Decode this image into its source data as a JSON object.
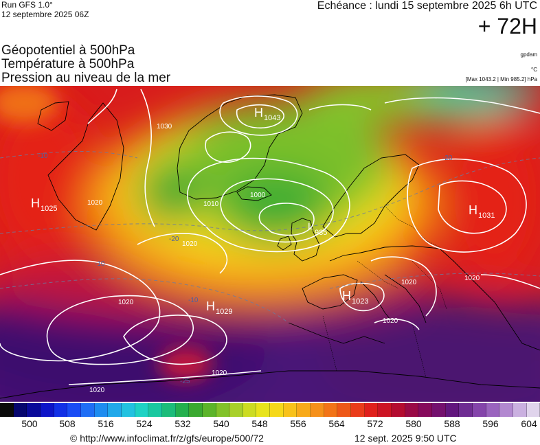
{
  "header": {
    "run": "Run GFS 1.0°",
    "run_date": "12 septembre 2025 06Z",
    "echeance": "Echéance : lundi 15 septembre 2025 6h UTC",
    "lead_time": "+ 72H"
  },
  "legend": {
    "line1": "Géopotentiel à 500hPa",
    "line2": "Température à 500hPa",
    "line3": "Pression au niveau de la mer",
    "unit1": "gpdam",
    "unit2": "°C",
    "unit3": "[Max 1043.2 | Min 985.2] hPa"
  },
  "map": {
    "highs": [
      {
        "label": "H",
        "value": "1043"
      },
      {
        "label": "H",
        "value": "1025"
      },
      {
        "label": "H",
        "value": "1031"
      },
      {
        "label": "H",
        "value": "1029"
      },
      {
        "label": "H",
        "value": "1023"
      }
    ],
    "lows": [
      {
        "label": "L",
        "value": "985"
      }
    ],
    "isobar_labels": [
      "1020",
      "1020",
      "1020",
      "1020",
      "1020",
      "1020",
      "1020",
      "1020",
      "1000",
      "1010",
      "1030"
    ],
    "temp_labels": [
      "-20",
      "-20",
      "-10",
      "-10",
      "-10",
      "-25"
    ],
    "colors": {
      "land_outline": "#000000",
      "isobar": "#ffffff"
    }
  },
  "scale": {
    "colors": [
      "#0a0a0a",
      "#06066e",
      "#0a0a9a",
      "#0d14c8",
      "#1230e6",
      "#1a4cf5",
      "#1f6ef5",
      "#1e8cf0",
      "#20a8ea",
      "#22c2e0",
      "#1ed2c4",
      "#1ac8a0",
      "#1cbc7a",
      "#24b04e",
      "#3aa830",
      "#5cb42a",
      "#82c22a",
      "#a8d02a",
      "#ccdc22",
      "#e8e41c",
      "#f5d81a",
      "#f8c21a",
      "#f8aa1a",
      "#f5901a",
      "#f27418",
      "#ee5818",
      "#ea3c1a",
      "#e0201c",
      "#cc1424",
      "#b40c30",
      "#9a0a46",
      "#860a5c",
      "#74106e",
      "#62167e",
      "#6e2c92",
      "#8444aa",
      "#9a64be",
      "#b288d0",
      "#cab0e0",
      "#e0d4ec"
    ],
    "tick_labels": [
      "500",
      "508",
      "516",
      "524",
      "532",
      "540",
      "548",
      "556",
      "564",
      "572",
      "580",
      "588",
      "596",
      "604"
    ]
  },
  "footer": {
    "credit": "© http://www.infoclimat.fr/z/gfs/europe/500/72",
    "timestamp": "12 sept. 2025  9:50 UTC"
  }
}
